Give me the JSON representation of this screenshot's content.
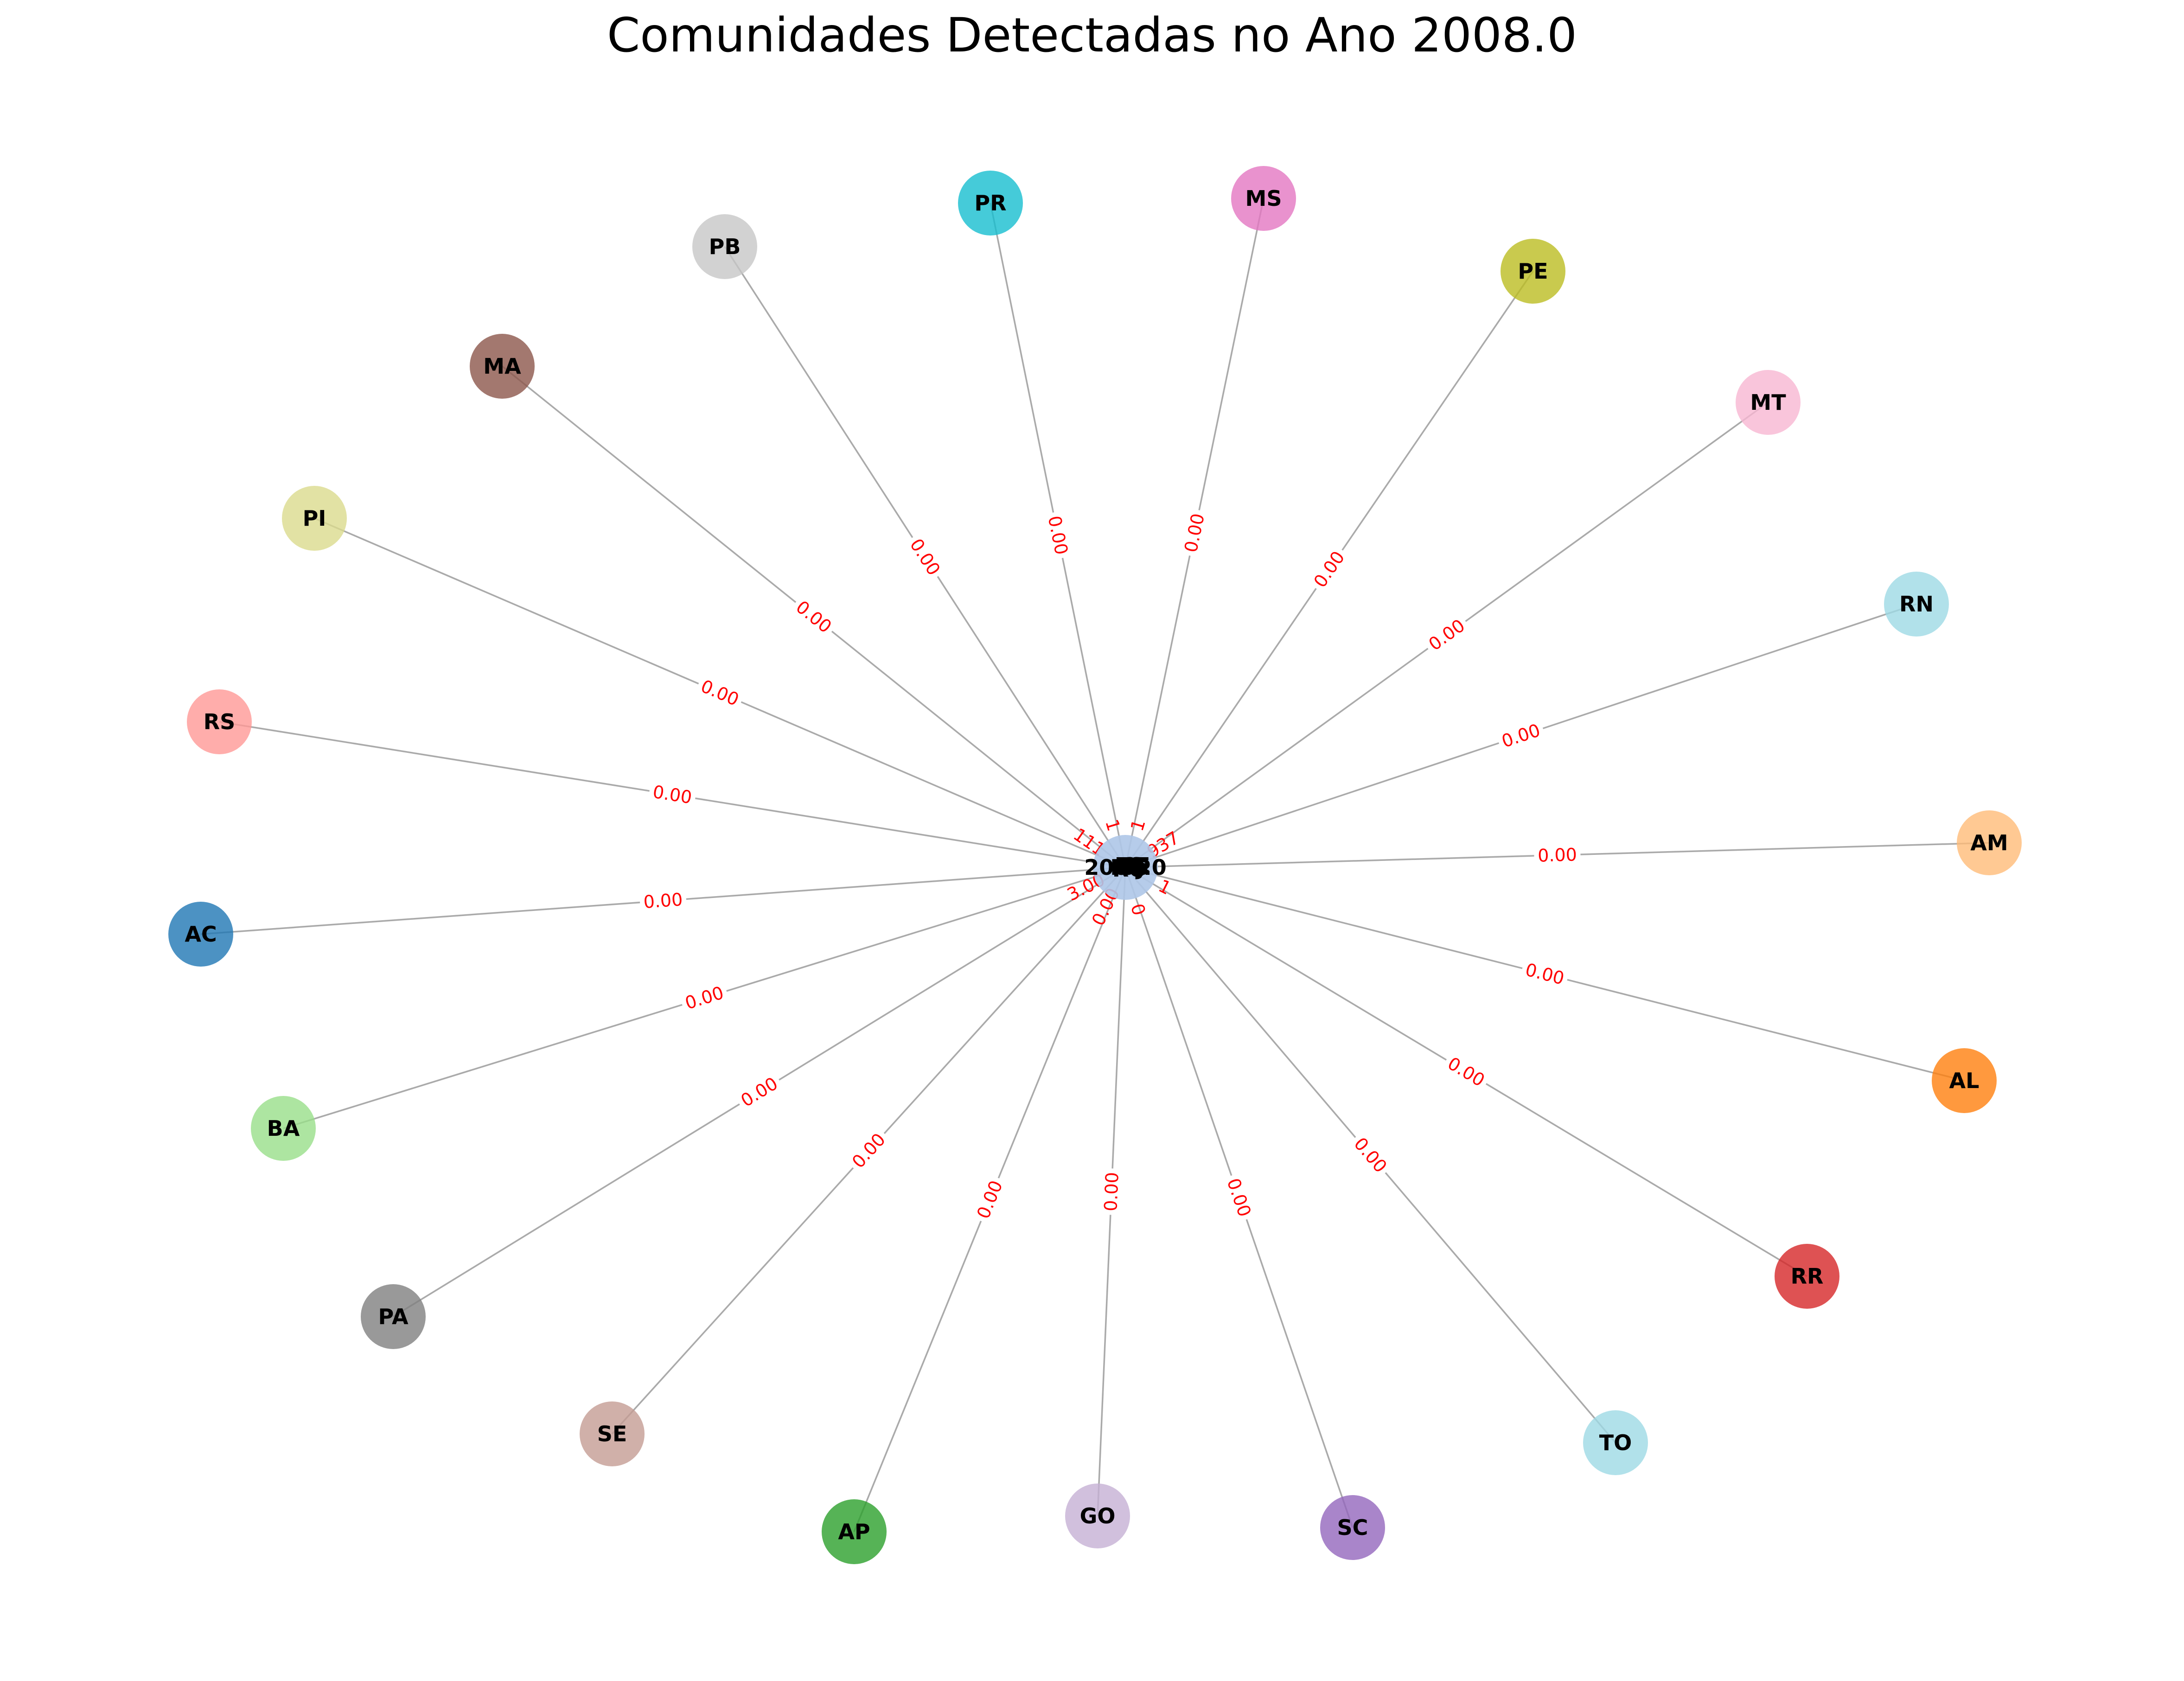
{
  "title": "Comunidades Detectadas no Ano 2008.0",
  "center": {
    "label": "2008.0",
    "color": "#aec7e8",
    "overlay_labels": [
      "ES",
      "DF",
      "CE",
      "MG",
      "RJ",
      "SP",
      "RO"
    ],
    "overlay_edge_texts": [
      "111",
      "1",
      "1",
      "937",
      "3.00",
      "0.00",
      "0",
      "1"
    ]
  },
  "nodes": [
    {
      "id": "PR",
      "color": "#17becf"
    },
    {
      "id": "MS",
      "color": "#e377c2"
    },
    {
      "id": "PE",
      "color": "#bcbd22"
    },
    {
      "id": "MT",
      "color": "#f7b6d2"
    },
    {
      "id": "RN",
      "color": "#9edae5"
    },
    {
      "id": "AM",
      "color": "#ffbb78"
    },
    {
      "id": "AL",
      "color": "#ff7f0e"
    },
    {
      "id": "RR",
      "color": "#d62728"
    },
    {
      "id": "TO",
      "color": "#9edae5"
    },
    {
      "id": "SC",
      "color": "#9467bd"
    },
    {
      "id": "GO",
      "color": "#c5b0d5"
    },
    {
      "id": "AP",
      "color": "#2ca02c"
    },
    {
      "id": "SE",
      "color": "#c49c94"
    },
    {
      "id": "PA",
      "color": "#7f7f7f"
    },
    {
      "id": "BA",
      "color": "#98df8a"
    },
    {
      "id": "AC",
      "color": "#1f77b4"
    },
    {
      "id": "RS",
      "color": "#ff9896"
    },
    {
      "id": "PI",
      "color": "#dbdb8d"
    },
    {
      "id": "MA",
      "color": "#8c564b"
    },
    {
      "id": "PB",
      "color": "#c7c7c7"
    }
  ],
  "edge_weight_label": "0.00"
}
